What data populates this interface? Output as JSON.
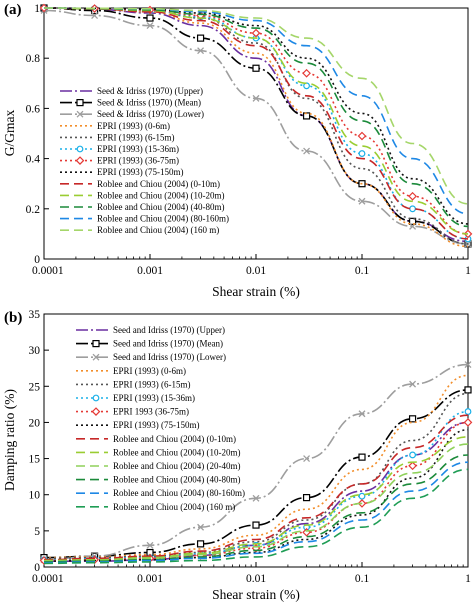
{
  "chart_data": [
    {
      "panel": "(a)",
      "type": "line",
      "xlabel": "Shear strain (%)",
      "ylabel": "G/Gmax",
      "xscale": "log",
      "xlim": [
        0.0001,
        1
      ],
      "ylim": [
        0,
        1
      ],
      "xticks": [
        "0.0001",
        "0.001",
        "0.01",
        "0.1",
        "1"
      ],
      "yticks": [
        "0",
        "0.2",
        "0.4",
        "0.6",
        "0.8",
        "1"
      ],
      "legend": "inside-left",
      "x": [
        0.0001,
        0.0003,
        0.001,
        0.003,
        0.01,
        0.03,
        0.1,
        0.3,
        1
      ],
      "series": [
        {
          "name": "Seed & Idriss (1970) (Upper)",
          "color": "#6a2fa0",
          "dash": "12 3 2 3",
          "marker": "none",
          "values": [
            1.0,
            0.995,
            0.98,
            0.93,
            0.8,
            0.57,
            0.3,
            0.15,
            0.07
          ]
        },
        {
          "name": "Seed & Idriss (1970) (Mean)",
          "color": "#000000",
          "dash": "12 3 2 3",
          "marker": "square",
          "values": [
            1.0,
            0.99,
            0.96,
            0.88,
            0.76,
            0.57,
            0.3,
            0.15,
            0.06
          ]
        },
        {
          "name": "Seed & Idriss (1970) (Lower)",
          "color": "#9e9e9e",
          "dash": "12 3 2 3",
          "marker": "x",
          "values": [
            0.99,
            0.97,
            0.93,
            0.83,
            0.64,
            0.43,
            0.23,
            0.13,
            0.06
          ]
        },
        {
          "name": "EPRI (1993) (0-6m)",
          "color": "#f28e2b",
          "dash": "2 3",
          "marker": "none",
          "values": [
            1.0,
            0.997,
            0.985,
            0.94,
            0.82,
            0.58,
            0.3,
            0.14,
            0.05
          ]
        },
        {
          "name": "EPRI (1993) (6-15m)",
          "color": "#555555",
          "dash": "2 3",
          "marker": "none",
          "values": [
            1.0,
            0.998,
            0.99,
            0.96,
            0.86,
            0.64,
            0.36,
            0.16,
            0.06
          ]
        },
        {
          "name": "EPRI (1993) (15-36m)",
          "color": "#1ab0e8",
          "dash": "2 3",
          "marker": "circle",
          "values": [
            1.0,
            0.998,
            0.99,
            0.965,
            0.88,
            0.69,
            0.42,
            0.2,
            0.08
          ]
        },
        {
          "name": "EPRI (1993) (36-75m)",
          "color": "#e53935",
          "dash": "2 3",
          "marker": "diamond",
          "values": [
            1.0,
            0.998,
            0.992,
            0.97,
            0.9,
            0.74,
            0.49,
            0.25,
            0.1
          ]
        },
        {
          "name": "EPRI (1993) (75-150m)",
          "color": "#111111",
          "dash": "2 3",
          "marker": "none",
          "values": [
            1.0,
            0.999,
            0.995,
            0.98,
            0.93,
            0.8,
            0.58,
            0.32,
            0.14
          ]
        },
        {
          "name": "Roblee and Chiou (2004) (0-10m)",
          "color": "#c62828",
          "dash": "9 5",
          "marker": "none",
          "values": [
            1.0,
            0.996,
            0.985,
            0.95,
            0.85,
            0.65,
            0.4,
            0.2,
            0.08
          ]
        },
        {
          "name": "Roblee and Chiou (2004) (10-20m)",
          "color": "#9acd32",
          "dash": "9 5",
          "marker": "none",
          "values": [
            1.0,
            0.997,
            0.99,
            0.96,
            0.88,
            0.7,
            0.45,
            0.23,
            0.1
          ]
        },
        {
          "name": "Roblee and Chiou (2004) (40-80m)",
          "color": "#1b8a3a",
          "dash": "9 5",
          "marker": "none",
          "values": [
            1.0,
            0.998,
            0.993,
            0.975,
            0.92,
            0.78,
            0.55,
            0.3,
            0.13
          ]
        },
        {
          "name": "Roblee and Chiou (2004) (80-160m)",
          "color": "#1e88e5",
          "dash": "9 5",
          "marker": "none",
          "values": [
            1.0,
            0.999,
            0.996,
            0.985,
            0.95,
            0.85,
            0.65,
            0.4,
            0.18
          ]
        },
        {
          "name": "Roblee and Chiou (2004) (160 m)",
          "color": "#a5d66a",
          "dash": "9 5",
          "marker": "none",
          "values": [
            1.0,
            0.999,
            0.997,
            0.99,
            0.96,
            0.88,
            0.72,
            0.46,
            0.22
          ]
        }
      ]
    },
    {
      "panel": "(b)",
      "type": "line",
      "xlabel": "Shear strain (%)",
      "ylabel": "Damping ratio (%)",
      "xscale": "log",
      "xlim": [
        0.0001,
        1
      ],
      "ylim": [
        0,
        35
      ],
      "xticks": [
        "0.0001",
        "0.001",
        "0.01",
        "0.1",
        "1"
      ],
      "yticks": [
        "0",
        "5",
        "10",
        "15",
        "20",
        "25",
        "30",
        "35"
      ],
      "legend": "top-left",
      "x": [
        0.0001,
        0.0003,
        0.001,
        0.003,
        0.01,
        0.03,
        0.1,
        0.3,
        1
      ],
      "series": [
        {
          "name": "Seed and Idriss (1970) (Upper)",
          "color": "#6a2fa0",
          "dash": "12 3 2 3",
          "marker": "none",
          "values": [
            0.8,
            0.8,
            1.0,
            1.6,
            3.0,
            6.0,
            10.5,
            15.5,
            20.0
          ]
        },
        {
          "name": "Seed and Idriss (1970) (Mean)",
          "color": "#000000",
          "dash": "12 3 2 3",
          "marker": "square",
          "values": [
            1.3,
            1.5,
            2.0,
            3.2,
            5.8,
            9.6,
            15.2,
            20.5,
            24.5
          ]
        },
        {
          "name": "Seed and Idriss (1970) (Lower)",
          "color": "#9e9e9e",
          "dash": "12 3 2 3",
          "marker": "x",
          "values": [
            1.0,
            1.5,
            3.0,
            5.5,
            9.5,
            15.0,
            21.2,
            25.3,
            28.0
          ]
        },
        {
          "name": "EPRI (1993) (0-6m)",
          "color": "#f28e2b",
          "dash": "2 3",
          "marker": "none",
          "values": [
            1.3,
            1.4,
            1.7,
            2.5,
            4.4,
            8.0,
            13.5,
            20.0,
            26.5
          ]
        },
        {
          "name": "EPRI (1993) (6-15m)",
          "color": "#555555",
          "dash": "2 3",
          "marker": "none",
          "values": [
            1.2,
            1.3,
            1.5,
            2.0,
            3.5,
            6.5,
            11.5,
            17.5,
            24.0
          ]
        },
        {
          "name": "EPRI (1993) (15-36m)",
          "color": "#1ab0e8",
          "dash": "2 3",
          "marker": "circle",
          "values": [
            1.0,
            1.1,
            1.3,
            1.8,
            3.0,
            5.5,
            9.8,
            15.5,
            21.5
          ]
        },
        {
          "name": "EPRI 1993 (36-75m)",
          "color": "#e53935",
          "dash": "2 3",
          "marker": "diamond",
          "values": [
            0.9,
            1.0,
            1.2,
            1.6,
            2.6,
            4.8,
            8.8,
            14.0,
            20.0
          ]
        },
        {
          "name": "EPRI (1993) (75-150m)",
          "color": "#111111",
          "dash": "2 3",
          "marker": "none",
          "values": [
            0.8,
            0.9,
            1.0,
            1.3,
            2.0,
            3.8,
            7.2,
            12.3,
            19.0
          ]
        },
        {
          "name": "Roblee and Chiou (2004) (0-10m)",
          "color": "#c62828",
          "dash": "9 5",
          "marker": "none",
          "values": [
            1.0,
            1.2,
            1.5,
            2.2,
            3.8,
            6.8,
            11.5,
            16.5,
            21.0
          ]
        },
        {
          "name": "Roblee and Chiou (2004) (10-20m)",
          "color": "#9acd32",
          "dash": "9 5",
          "marker": "none",
          "values": [
            0.9,
            1.0,
            1.3,
            1.9,
            3.2,
            5.8,
            10.0,
            14.5,
            18.0
          ]
        },
        {
          "name": "Roblee and Chiou (2004) (20-40m)",
          "color": "#8fd15a",
          "dash": "9 5",
          "marker": "none",
          "values": [
            0.8,
            0.9,
            1.2,
            1.7,
            2.8,
            5.0,
            8.8,
            13.0,
            17.0
          ]
        },
        {
          "name": "Roblee and Chiou (2004) (40-80m)",
          "color": "#1b8a3a",
          "dash": "9 5",
          "marker": "none",
          "values": [
            0.7,
            0.8,
            1.0,
            1.4,
            2.3,
            4.2,
            7.5,
            11.5,
            15.5
          ]
        },
        {
          "name": "Roblee and Chiou (2004) (80-160m)",
          "color": "#1e88e5",
          "dash": "9 5",
          "marker": "none",
          "values": [
            0.6,
            0.7,
            0.9,
            1.2,
            1.9,
            3.5,
            6.5,
            10.5,
            14.5
          ]
        },
        {
          "name": "Roblee and Chiou (2004) (160 m)",
          "color": "#1f9d55",
          "dash": "9 5",
          "marker": "none",
          "values": [
            0.5,
            0.6,
            0.7,
            0.9,
            1.4,
            2.8,
            5.5,
            9.5,
            13.5
          ]
        }
      ]
    }
  ]
}
